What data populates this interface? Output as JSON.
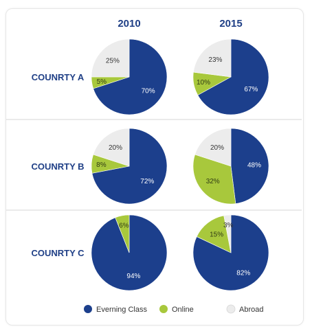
{
  "chart_data": {
    "type": "pie",
    "columns": [
      "2010",
      "2015"
    ],
    "rows": [
      {
        "label": "COUNRTY A",
        "pies": [
          {
            "Evening Class": 70,
            "Online": 5,
            "Abroad": 25
          },
          {
            "Evening Class": 67,
            "Online": 10,
            "Abroad": 23
          }
        ]
      },
      {
        "label": "COUNRTY B",
        "pies": [
          {
            "Evening Class": 72,
            "Online": 8,
            "Abroad": 20
          },
          {
            "Evening Class": 48,
            "Online": 32,
            "Abroad": 20
          }
        ]
      },
      {
        "label": "COUNRTY C",
        "pies": [
          {
            "Evening Class": 94,
            "Online": 6,
            "Abroad": 0
          },
          {
            "Evening Class": 82,
            "Online": 15,
            "Abroad": 3
          }
        ]
      }
    ],
    "categories": [
      "Evening Class",
      "Online",
      "Abroad"
    ],
    "legend": [
      {
        "name": "Everning Class",
        "color": "#1c3f8c"
      },
      {
        "name": "Online",
        "color": "#a8c83c"
      },
      {
        "name": "Abroad",
        "color": "#ececec"
      }
    ],
    "legend_position": "bottom",
    "colors": {
      "Evening Class": "#1c3f8c",
      "Online": "#a8c83c",
      "Abroad": "#ececec"
    },
    "label_colors": {
      "Evening Class": "#ffffff",
      "Online": "#2f3a14",
      "Abroad": "#333333"
    }
  }
}
